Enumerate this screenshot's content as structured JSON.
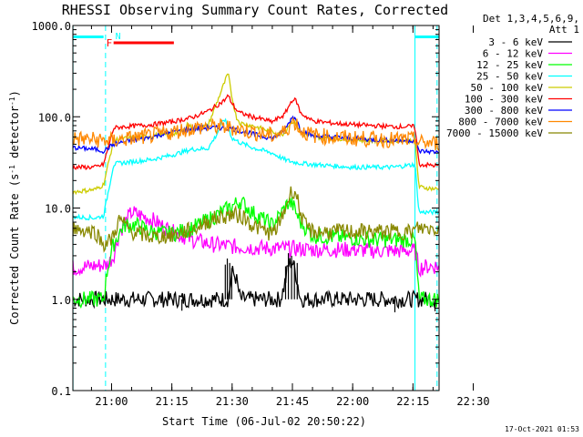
{
  "chart_data": {
    "type": "line",
    "title": "RHESSI Observing Summary Count Rates, Corrected",
    "xlabel": "Start Time (06-Jul-02 20:50:22)",
    "ylabel": "Corrected Count Rate (s-1 detector-1)",
    "ylabel_parts": {
      "before": "Corrected Count Rate (s",
      "sup1": "-1",
      "mid": " detector",
      "sup2": "-1",
      "after": ")"
    },
    "yscale": "log",
    "xlim": [
      50.37,
      141.5
    ],
    "ylim": [
      0.1,
      1000
    ],
    "x_unit": "minutes after 20:00 UT",
    "x_ticks": [
      {
        "v": 60,
        "label": "21:00"
      },
      {
        "v": 75,
        "label": "21:15"
      },
      {
        "v": 90,
        "label": "21:30"
      },
      {
        "v": 105,
        "label": "21:45"
      },
      {
        "v": 120,
        "label": "22:00"
      },
      {
        "v": 135,
        "label": "22:15"
      },
      {
        "v": 150,
        "label": "22:30"
      }
    ],
    "y_ticks": [
      {
        "v": 0.1,
        "label": "0.1"
      },
      {
        "v": 1,
        "label": "1.0"
      },
      {
        "v": 10,
        "label": "10.0"
      },
      {
        "v": 100,
        "label": "100.0"
      },
      {
        "v": 1000,
        "label": "1000.0"
      }
    ],
    "legend_header": [
      "Det 1,3,4,5,6,9,",
      "Att 1"
    ],
    "series": [
      {
        "name": "3 - 6 keV",
        "color": "#000000",
        "x": [
          50.4,
          60.5,
          62,
          80,
          84,
          86,
          88,
          89,
          90,
          91,
          92,
          102,
          103,
          104,
          105,
          106,
          107,
          108,
          118,
          122,
          125,
          130,
          135
        ],
        "y": [
          1.0,
          1.0,
          1.0,
          1.0,
          1.0,
          1.0,
          1.0,
          1.0,
          2.0,
          1.7,
          1.0,
          1.0,
          1.4,
          2.4,
          2.6,
          1.8,
          1.0,
          1.0,
          1.0,
          1.0,
          1.0,
          1.0,
          1.0
        ]
      },
      {
        "name": "6 - 12 keV",
        "color": "#ff00ff",
        "x": [
          50.4,
          59,
          60.5,
          62,
          65,
          70,
          75,
          80,
          85,
          90,
          95,
          100,
          105,
          110,
          115,
          120,
          125,
          130,
          135.5,
          136.5,
          139,
          141.5
        ],
        "y": [
          2.2,
          2.4,
          3.0,
          5.5,
          9.0,
          7.5,
          5.5,
          4.5,
          4.0,
          3.8,
          3.7,
          3.6,
          3.6,
          3.5,
          3.5,
          3.5,
          3.4,
          3.4,
          3.4,
          2.2,
          2.3,
          2.3
        ]
      },
      {
        "name": "12 - 25 keV",
        "color": "#00ff00",
        "x": [
          50.4,
          58,
          59,
          60.5,
          63,
          66,
          70,
          75,
          80,
          85,
          90,
          92,
          95,
          100,
          102,
          104,
          105,
          107,
          110,
          115,
          120,
          125,
          130,
          135.5,
          136.5,
          141.5
        ],
        "y": [
          1.0,
          1.0,
          2.2,
          4.0,
          6.5,
          6.5,
          5.5,
          5.2,
          6.0,
          7.8,
          10.5,
          12.0,
          9.0,
          6.5,
          8.5,
          11.5,
          11.0,
          7.0,
          5.0,
          4.8,
          4.7,
          4.5,
          4.5,
          4.5,
          1.0,
          1.0
        ]
      },
      {
        "name": "25 - 50 keV",
        "color": "#00ffff",
        "x": [
          50.4,
          56,
          58,
          60.5,
          62,
          70,
          75,
          80,
          84,
          86,
          88,
          89,
          90,
          92,
          95,
          100,
          103,
          105,
          107,
          110,
          115,
          120,
          125,
          130,
          135.5,
          136.5,
          141.5
        ],
        "y": [
          8.0,
          7.8,
          8.2,
          30,
          31,
          34,
          38,
          44,
          45,
          62,
          95,
          78,
          58,
          52,
          46,
          40,
          34,
          32,
          31,
          30,
          29,
          28,
          28,
          28,
          30,
          9.0,
          9.0
        ]
      },
      {
        "name": "50 - 100 keV",
        "color": "#cccc00",
        "x": [
          50.4,
          56,
          58,
          60.5,
          62,
          70,
          75,
          78,
          79,
          80,
          84,
          88,
          89,
          90,
          91,
          92,
          95,
          100,
          103,
          104,
          105,
          106,
          107,
          110,
          115,
          120,
          125,
          130,
          135.5,
          136.5,
          141.5
        ],
        "y": [
          15,
          16,
          18,
          55,
          57,
          62,
          65,
          70,
          86,
          73,
          80,
          230,
          300,
          160,
          100,
          85,
          80,
          68,
          65,
          80,
          90,
          82,
          66,
          60,
          58,
          56,
          55,
          55,
          55,
          17,
          16
        ]
      },
      {
        "name": "100 - 300 keV",
        "color": "#ff0000",
        "x": [
          50.4,
          56,
          58,
          60.5,
          62,
          70,
          75,
          80,
          84,
          88,
          89,
          90,
          91,
          92,
          95,
          100,
          103,
          105,
          106,
          107,
          110,
          115,
          120,
          125,
          130,
          135.5,
          136.5,
          141.5
        ],
        "y": [
          28,
          28,
          30,
          75,
          77,
          82,
          88,
          98,
          115,
          150,
          170,
          140,
          120,
          110,
          100,
          88,
          105,
          155,
          150,
          110,
          90,
          85,
          82,
          80,
          78,
          78,
          30,
          29
        ]
      },
      {
        "name": "300 - 800 keV",
        "color": "#0000ff",
        "x": [
          50.4,
          56,
          58,
          60.5,
          62,
          70,
          75,
          80,
          85,
          90,
          95,
          100,
          103,
          105,
          106,
          107,
          110,
          115,
          120,
          125,
          130,
          135.5,
          136.5,
          141.5
        ],
        "y": [
          46,
          44,
          42,
          50,
          52,
          60,
          68,
          74,
          76,
          74,
          65,
          58,
          70,
          100,
          95,
          72,
          62,
          60,
          58,
          56,
          55,
          55,
          42,
          41
        ]
      },
      {
        "name": "800 - 7000 keV",
        "color": "#ff8800",
        "x": [
          50.4,
          56,
          58,
          60.5,
          62,
          70,
          75,
          80,
          85,
          90,
          95,
          100,
          103,
          105,
          106,
          107,
          110,
          115,
          120,
          125,
          130,
          135.5,
          136.5,
          141.5
        ],
        "y": [
          58,
          56,
          55,
          55,
          56,
          62,
          68,
          75,
          78,
          76,
          68,
          62,
          68,
          88,
          85,
          70,
          63,
          60,
          58,
          57,
          56,
          56,
          52,
          51
        ]
      },
      {
        "name": "7000 - 15000 keV",
        "color": "#888800",
        "x": [
          50.4,
          56,
          58,
          60,
          62,
          65,
          70,
          75,
          80,
          85,
          90,
          93,
          95,
          100,
          102,
          104,
          105,
          106,
          107,
          108,
          110,
          115,
          120,
          125,
          130,
          135,
          136,
          141.5
        ],
        "y": [
          6.0,
          5.5,
          4.0,
          4.5,
          7.5,
          5.5,
          4.8,
          5.0,
          5.8,
          7.5,
          8.5,
          8.0,
          6.5,
          5.2,
          7.0,
          12.5,
          16.0,
          14.0,
          9.0,
          6.5,
          5.5,
          5.5,
          5.5,
          5.5,
          5.5,
          5.5,
          6.0,
          6.0
        ]
      }
    ],
    "attenuator_markers": [
      {
        "color": "#00ffff",
        "x_start": 50.4,
        "x_end": 58.0,
        "style": "band"
      },
      {
        "color": "#00ffff",
        "x_start": 135.5,
        "x_end": 141.5,
        "style": "band"
      }
    ],
    "vertical_lines": [
      {
        "x": 50.4,
        "style": "solid",
        "color": "#00ffff"
      },
      {
        "x": 58.5,
        "style": "dashed",
        "color": "#00ffff"
      },
      {
        "x": 135.5,
        "style": "solid",
        "color": "#00ffff"
      },
      {
        "x": 141.0,
        "style": "dashed",
        "color": "#00ffff"
      }
    ],
    "flags": [
      {
        "label": "F",
        "color": "#ff0000",
        "x_start": 60.5,
        "x_end": 75.5,
        "y": 600
      },
      {
        "label": "N",
        "color": "#00ffff",
        "x_start": 60.5,
        "x_end": null,
        "y": 830
      }
    ],
    "footer": "17-Oct-2021 01:53"
  }
}
